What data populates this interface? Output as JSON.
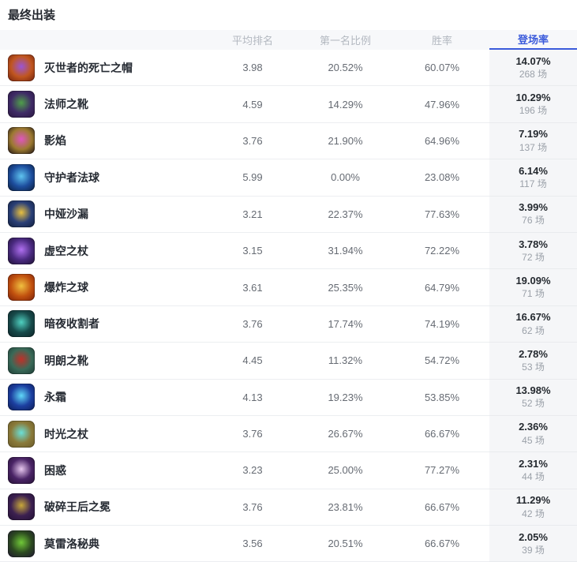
{
  "page": {
    "title": "最终出装"
  },
  "colors": {
    "accent_blue": "#3b5bdb",
    "highlight_column_bg": "#f5f6f8",
    "header_bg": "#f7f8fa"
  },
  "table": {
    "columns": {
      "avg_rank": {
        "label": "平均排名",
        "active": false
      },
      "first_rate": {
        "label": "第一名比例",
        "active": false
      },
      "win_rate": {
        "label": "胜率",
        "active": false
      },
      "pick_rate": {
        "label": "登场率",
        "active": true
      }
    },
    "rows": [
      {
        "name": "灭世者的死亡之帽",
        "icon": "rabadons-deathcap-icon",
        "icon_colors": [
          "#71200d",
          "#c0561f",
          "#9a55d6"
        ],
        "avg_rank": "3.98",
        "first_rate": "20.52%",
        "win_rate": "60.07%",
        "pick_rate": "14.07%",
        "games": "268 场"
      },
      {
        "name": "法师之靴",
        "icon": "sorcerers-shoes-icon",
        "icon_colors": [
          "#2a1640",
          "#3f2b66",
          "#4f9e4a"
        ],
        "avg_rank": "4.59",
        "first_rate": "14.29%",
        "win_rate": "47.96%",
        "pick_rate": "10.29%",
        "games": "196 场"
      },
      {
        "name": "影焰",
        "icon": "shadowflame-icon",
        "icon_colors": [
          "#1a0f14",
          "#9c7a30",
          "#e055c0"
        ],
        "avg_rank": "3.76",
        "first_rate": "21.90%",
        "win_rate": "64.96%",
        "pick_rate": "7.19%",
        "games": "137 场"
      },
      {
        "name": "守护者法球",
        "icon": "guardians-orb-icon",
        "icon_colors": [
          "#0a1c3a",
          "#1d4e9e",
          "#5fc4f0"
        ],
        "avg_rank": "5.99",
        "first_rate": "0.00%",
        "win_rate": "23.08%",
        "pick_rate": "6.14%",
        "games": "117 场"
      },
      {
        "name": "中娅沙漏",
        "icon": "zhonyas-hourglass-icon",
        "icon_colors": [
          "#101e3c",
          "#2a3f77",
          "#e8c040"
        ],
        "avg_rank": "3.21",
        "first_rate": "22.37%",
        "win_rate": "77.63%",
        "pick_rate": "3.99%",
        "games": "76 场"
      },
      {
        "name": "虚空之杖",
        "icon": "void-staff-icon",
        "icon_colors": [
          "#1c1030",
          "#4a2a80",
          "#b070f0"
        ],
        "avg_rank": "3.15",
        "first_rate": "31.94%",
        "win_rate": "72.22%",
        "pick_rate": "3.78%",
        "games": "72 场"
      },
      {
        "name": "爆炸之球",
        "icon": "blast-orb-icon",
        "icon_colors": [
          "#7a1e08",
          "#c2520f",
          "#f0c040"
        ],
        "avg_rank": "3.61",
        "first_rate": "25.35%",
        "win_rate": "64.79%",
        "pick_rate": "19.09%",
        "games": "71 场"
      },
      {
        "name": "暗夜收割者",
        "icon": "night-harvester-icon",
        "icon_colors": [
          "#0c2226",
          "#174a4a",
          "#4fd0c0"
        ],
        "avg_rank": "3.76",
        "first_rate": "17.74%",
        "win_rate": "74.19%",
        "pick_rate": "16.67%",
        "games": "62 场"
      },
      {
        "name": "明朗之靴",
        "icon": "ionian-boots-icon",
        "icon_colors": [
          "#1c3a34",
          "#3a6a58",
          "#c03028"
        ],
        "avg_rank": "4.45",
        "first_rate": "11.32%",
        "win_rate": "54.72%",
        "pick_rate": "2.78%",
        "games": "53 场"
      },
      {
        "name": "永霜",
        "icon": "everfrost-icon",
        "icon_colors": [
          "#0c1c55",
          "#1c3fa0",
          "#60d8f8"
        ],
        "avg_rank": "4.13",
        "first_rate": "19.23%",
        "win_rate": "53.85%",
        "pick_rate": "13.98%",
        "games": "52 场"
      },
      {
        "name": "时光之杖",
        "icon": "rod-of-ages-icon",
        "icon_colors": [
          "#6a5a28",
          "#8a7a3a",
          "#6ae0d8"
        ],
        "avg_rank": "3.76",
        "first_rate": "26.67%",
        "win_rate": "66.67%",
        "pick_rate": "2.36%",
        "games": "45 场"
      },
      {
        "name": "困惑",
        "icon": "bewilderment-icon",
        "icon_colors": [
          "#241034",
          "#4a2466",
          "#e8c8f0"
        ],
        "avg_rank": "3.23",
        "first_rate": "25.00%",
        "win_rate": "77.27%",
        "pick_rate": "2.31%",
        "games": "44 场"
      },
      {
        "name": "破碎王后之冕",
        "icon": "crown-of-shattered-queen-icon",
        "icon_colors": [
          "#221034",
          "#3c2050",
          "#c8a83a"
        ],
        "avg_rank": "3.76",
        "first_rate": "23.81%",
        "win_rate": "66.67%",
        "pick_rate": "11.29%",
        "games": "42 场"
      },
      {
        "name": "莫雷洛秘典",
        "icon": "morellonomicon-icon",
        "icon_colors": [
          "#1e1430",
          "#2c4a20",
          "#70c838"
        ],
        "avg_rank": "3.56",
        "first_rate": "20.51%",
        "win_rate": "66.67%",
        "pick_rate": "2.05%",
        "games": "39 场"
      }
    ]
  }
}
